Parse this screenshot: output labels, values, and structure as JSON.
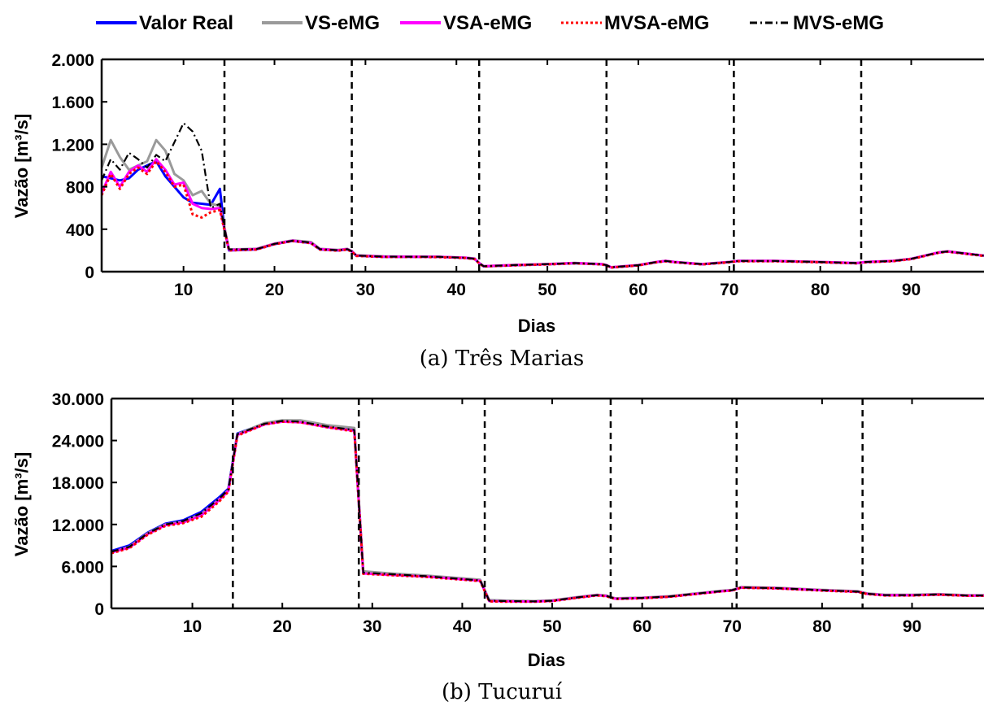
{
  "legend": {
    "position": "top-center",
    "items": [
      {
        "label": "Valor Real",
        "color": "#0000ff",
        "dash": "solid"
      },
      {
        "label": "VS-eMG",
        "color": "#9a9a9a",
        "dash": "solid"
      },
      {
        "label": "VSA-eMG",
        "color": "#ff00ff",
        "dash": "solid"
      },
      {
        "label": "MVSA-eMG",
        "color": "#ff0000",
        "dash": "dotted"
      },
      {
        "label": "MVS-eMG",
        "color": "#000000",
        "dash": "dashdot"
      }
    ]
  },
  "chart_data": [
    {
      "type": "line",
      "caption": "(a) Três Marias",
      "xlabel": "Dias",
      "ylabel": "Vazão [m³/s]",
      "xlim": [
        1,
        98
      ],
      "ylim": [
        0,
        2000
      ],
      "xticks": [
        10,
        20,
        30,
        40,
        50,
        60,
        70,
        80,
        90
      ],
      "xtick_labels": [
        "10",
        "20",
        "30",
        "40",
        "50",
        "60",
        "70",
        "80",
        "90"
      ],
      "yticks": [
        0,
        400,
        800,
        1200,
        1600,
        2000
      ],
      "ytick_labels": [
        "0",
        "400",
        "800",
        "1.200",
        "1.600",
        "2.000"
      ],
      "vlines": [
        14.5,
        28.5,
        42.5,
        56.5,
        70.5,
        84.5
      ],
      "series": [
        {
          "name": "Valor Real",
          "x": [
            1,
            2,
            3,
            4,
            5,
            6,
            7,
            8,
            9,
            10,
            11,
            12,
            13,
            14,
            14.5,
            15,
            18,
            20,
            22,
            24,
            25,
            27,
            28,
            28.5,
            29,
            32,
            35,
            38,
            41,
            42,
            42.5,
            43,
            46,
            50,
            53,
            56,
            56.5,
            57,
            60,
            62,
            63,
            64,
            67,
            70,
            71,
            75,
            80,
            84,
            85,
            88,
            90,
            92,
            93,
            94,
            96,
            98
          ],
          "y": [
            900,
            880,
            860,
            880,
            960,
            1000,
            1040,
            900,
            800,
            700,
            650,
            640,
            630,
            780,
            400,
            200,
            210,
            260,
            290,
            270,
            210,
            200,
            210,
            190,
            150,
            140,
            140,
            140,
            130,
            120,
            80,
            50,
            60,
            70,
            80,
            70,
            60,
            40,
            60,
            90,
            100,
            90,
            70,
            90,
            100,
            100,
            90,
            80,
            90,
            100,
            120,
            160,
            180,
            190,
            170,
            150
          ]
        },
        {
          "name": "VS-eMG",
          "x": [
            1,
            2,
            3,
            4,
            5,
            6,
            7,
            8,
            9,
            10,
            11,
            12,
            13,
            14,
            14.5,
            15,
            18,
            20,
            22,
            24,
            25,
            27,
            28,
            28.5,
            29,
            32,
            35,
            38,
            41,
            42,
            42.5,
            43,
            46,
            50,
            53,
            56,
            56.5,
            57,
            60,
            62,
            63,
            64,
            67,
            70,
            71,
            75,
            80,
            84,
            85,
            88,
            90,
            92,
            93,
            94,
            96,
            98
          ],
          "y": [
            980,
            1240,
            1080,
            960,
            1000,
            1040,
            1240,
            1140,
            920,
            860,
            720,
            760,
            640,
            620,
            420,
            210,
            215,
            265,
            295,
            280,
            215,
            205,
            215,
            195,
            155,
            145,
            142,
            140,
            132,
            125,
            82,
            52,
            62,
            72,
            82,
            72,
            62,
            42,
            62,
            92,
            102,
            92,
            72,
            92,
            102,
            102,
            92,
            82,
            92,
            102,
            122,
            162,
            182,
            192,
            172,
            152
          ]
        },
        {
          "name": "VSA-eMG",
          "x": [
            1,
            2,
            3,
            4,
            5,
            6,
            7,
            8,
            9,
            10,
            11,
            12,
            13,
            14,
            14.5,
            15,
            18,
            20,
            22,
            24,
            25,
            27,
            28,
            28.5,
            29,
            32,
            35,
            38,
            41,
            42,
            42.5,
            43,
            46,
            50,
            53,
            56,
            56.5,
            57,
            60,
            62,
            63,
            64,
            67,
            70,
            71,
            75,
            80,
            84,
            85,
            88,
            90,
            92,
            93,
            94,
            96,
            98
          ],
          "y": [
            740,
            940,
            800,
            940,
            1000,
            940,
            1060,
            960,
            820,
            840,
            640,
            600,
            590,
            600,
            400,
            205,
            212,
            262,
            292,
            272,
            212,
            202,
            212,
            192,
            152,
            142,
            141,
            140,
            131,
            122,
            81,
            51,
            61,
            71,
            81,
            71,
            61,
            41,
            61,
            91,
            101,
            91,
            71,
            91,
            101,
            101,
            91,
            81,
            91,
            101,
            121,
            161,
            181,
            191,
            171,
            151
          ]
        },
        {
          "name": "MVSA-eMG",
          "x": [
            1,
            2,
            3,
            4,
            5,
            6,
            7,
            8,
            9,
            10,
            11,
            12,
            13,
            14,
            14.5,
            15,
            18,
            20,
            22,
            24,
            25,
            27,
            28,
            28.5,
            29,
            32,
            35,
            38,
            41,
            42,
            42.5,
            43,
            46,
            50,
            53,
            56,
            56.5,
            57,
            60,
            62,
            63,
            64,
            67,
            70,
            71,
            75,
            80,
            84,
            85,
            88,
            90,
            92,
            93,
            94,
            96,
            98
          ],
          "y": [
            720,
            920,
            780,
            920,
            980,
            920,
            1040,
            940,
            800,
            820,
            540,
            510,
            560,
            580,
            390,
            200,
            208,
            258,
            288,
            268,
            208,
            198,
            208,
            188,
            148,
            138,
            138,
            137,
            128,
            118,
            78,
            48,
            58,
            68,
            78,
            68,
            58,
            38,
            58,
            88,
            98,
            88,
            68,
            88,
            98,
            98,
            88,
            78,
            88,
            98,
            118,
            158,
            178,
            188,
            168,
            148
          ]
        },
        {
          "name": "MVS-eMG",
          "x": [
            1,
            2,
            3,
            4,
            5,
            6,
            7,
            8,
            9,
            10,
            11,
            12,
            13,
            14,
            14.5,
            15,
            18,
            20,
            22,
            24,
            25,
            27,
            28,
            28.5,
            29,
            32,
            35,
            38,
            41,
            42,
            42.5,
            43,
            46,
            50,
            53,
            56,
            56.5,
            57,
            60,
            62,
            63,
            64,
            67,
            70,
            71,
            75,
            80,
            84,
            85,
            88,
            90,
            92,
            93,
            94,
            96,
            98
          ],
          "y": [
            860,
            1060,
            960,
            1120,
            1060,
            980,
            1100,
            1040,
            1220,
            1400,
            1320,
            1140,
            600,
            640,
            410,
            210,
            212,
            262,
            292,
            274,
            212,
            202,
            212,
            192,
            152,
            142,
            141,
            140,
            131,
            122,
            81,
            51,
            61,
            71,
            81,
            71,
            61,
            41,
            61,
            91,
            101,
            91,
            71,
            91,
            101,
            101,
            91,
            81,
            91,
            101,
            121,
            161,
            181,
            191,
            171,
            151
          ]
        }
      ]
    },
    {
      "type": "line",
      "caption": "(b) Tucuruí",
      "xlabel": "Dias",
      "ylabel": "Vazão [m³/s]",
      "xlim": [
        1,
        98
      ],
      "ylim": [
        0,
        30000
      ],
      "xticks": [
        10,
        20,
        30,
        40,
        50,
        60,
        70,
        80,
        90
      ],
      "xtick_labels": [
        "10",
        "20",
        "30",
        "40",
        "50",
        "60",
        "70",
        "80",
        "90"
      ],
      "yticks": [
        0,
        6000,
        12000,
        18000,
        24000,
        30000
      ],
      "ytick_labels": [
        "0",
        "6.000",
        "12.000",
        "18.000",
        "24.000",
        "30.000"
      ],
      "vlines": [
        14.5,
        28.5,
        42.5,
        56.5,
        70.5,
        84.5
      ],
      "series": [
        {
          "name": "Valor Real",
          "x": [
            1,
            3,
            5,
            7,
            9,
            11,
            13,
            14,
            15,
            18,
            20,
            22,
            25,
            28,
            29,
            32,
            36,
            40,
            42,
            43,
            45,
            48,
            50,
            53,
            55,
            56,
            57,
            60,
            63,
            66,
            69,
            70,
            71,
            75,
            80,
            84,
            85,
            87,
            90,
            93,
            96,
            98
          ],
          "y": [
            8200,
            9000,
            10800,
            12100,
            12600,
            13800,
            15900,
            17100,
            25000,
            26400,
            26800,
            26700,
            26000,
            25500,
            5100,
            4900,
            4600,
            4200,
            4000,
            1100,
            1050,
            1000,
            1100,
            1600,
            1900,
            1800,
            1400,
            1500,
            1700,
            2100,
            2500,
            2600,
            3000,
            2900,
            2600,
            2400,
            2100,
            1900,
            1900,
            2000,
            1850,
            1850
          ]
        },
        {
          "name": "VS-eMG",
          "x": [
            1,
            3,
            5,
            7,
            9,
            11,
            13,
            14,
            15,
            18,
            20,
            22,
            25,
            28,
            29,
            32,
            36,
            40,
            42,
            43,
            45,
            48,
            50,
            53,
            55,
            56,
            57,
            60,
            63,
            66,
            69,
            70,
            71,
            75,
            80,
            84,
            85,
            87,
            90,
            93,
            96,
            98
          ],
          "y": [
            8000,
            8800,
            10700,
            12000,
            12400,
            13500,
            15600,
            16900,
            24900,
            26500,
            26900,
            26900,
            26200,
            25800,
            5300,
            5000,
            4700,
            4300,
            4100,
            1200,
            1100,
            1050,
            1150,
            1650,
            1950,
            1850,
            1450,
            1550,
            1750,
            2150,
            2550,
            2650,
            3050,
            2950,
            2650,
            2450,
            2150,
            1950,
            1950,
            2050,
            1900,
            1900
          ]
        },
        {
          "name": "VSA-eMG",
          "x": [
            1,
            3,
            5,
            7,
            9,
            11,
            13,
            14,
            15,
            18,
            20,
            22,
            25,
            28,
            29,
            32,
            36,
            40,
            42,
            43,
            45,
            48,
            50,
            53,
            55,
            56,
            57,
            60,
            63,
            66,
            69,
            70,
            71,
            75,
            80,
            84,
            85,
            87,
            90,
            93,
            96,
            98
          ],
          "y": [
            8000,
            8700,
            10600,
            11900,
            12300,
            13300,
            15500,
            16800,
            24800,
            26300,
            26700,
            26600,
            25900,
            25400,
            5000,
            4800,
            4550,
            4150,
            3950,
            1050,
            1000,
            980,
            1080,
            1580,
            1880,
            1780,
            1380,
            1480,
            1680,
            2080,
            2480,
            2580,
            2980,
            2880,
            2580,
            2380,
            2080,
            1880,
            1880,
            1980,
            1830,
            1830
          ]
        },
        {
          "name": "MVSA-eMG",
          "x": [
            1,
            3,
            5,
            7,
            9,
            11,
            13,
            14,
            15,
            18,
            20,
            22,
            25,
            28,
            29,
            32,
            36,
            40,
            42,
            43,
            45,
            48,
            50,
            53,
            55,
            56,
            57,
            60,
            63,
            66,
            69,
            70,
            71,
            75,
            80,
            84,
            85,
            87,
            90,
            93,
            96,
            98
          ],
          "y": [
            7900,
            8600,
            10500,
            11800,
            12200,
            13100,
            15300,
            16700,
            24700,
            26300,
            26700,
            26600,
            25900,
            25300,
            4950,
            4750,
            4500,
            4100,
            3900,
            1000,
            950,
            950,
            1050,
            1550,
            1850,
            1750,
            1350,
            1450,
            1650,
            2050,
            2450,
            2550,
            2950,
            2850,
            2550,
            2350,
            2050,
            1850,
            1850,
            1950,
            1800,
            1800
          ]
        },
        {
          "name": "MVS-eMG",
          "x": [
            1,
            3,
            5,
            7,
            9,
            11,
            13,
            14,
            15,
            18,
            20,
            22,
            25,
            28,
            29,
            32,
            36,
            40,
            42,
            43,
            45,
            48,
            50,
            53,
            55,
            56,
            57,
            60,
            63,
            66,
            69,
            70,
            71,
            75,
            80,
            84,
            85,
            87,
            90,
            93,
            96,
            98
          ],
          "y": [
            8100,
            8800,
            10700,
            12000,
            12500,
            13600,
            15700,
            17000,
            24900,
            26400,
            26800,
            26700,
            26000,
            25500,
            5100,
            4900,
            4600,
            4200,
            4000,
            1100,
            1050,
            1000,
            1100,
            1600,
            1900,
            1800,
            1400,
            1500,
            1700,
            2100,
            2500,
            2600,
            3000,
            2900,
            2600,
            2400,
            2100,
            1900,
            1900,
            2000,
            1850,
            1850
          ]
        }
      ]
    }
  ]
}
